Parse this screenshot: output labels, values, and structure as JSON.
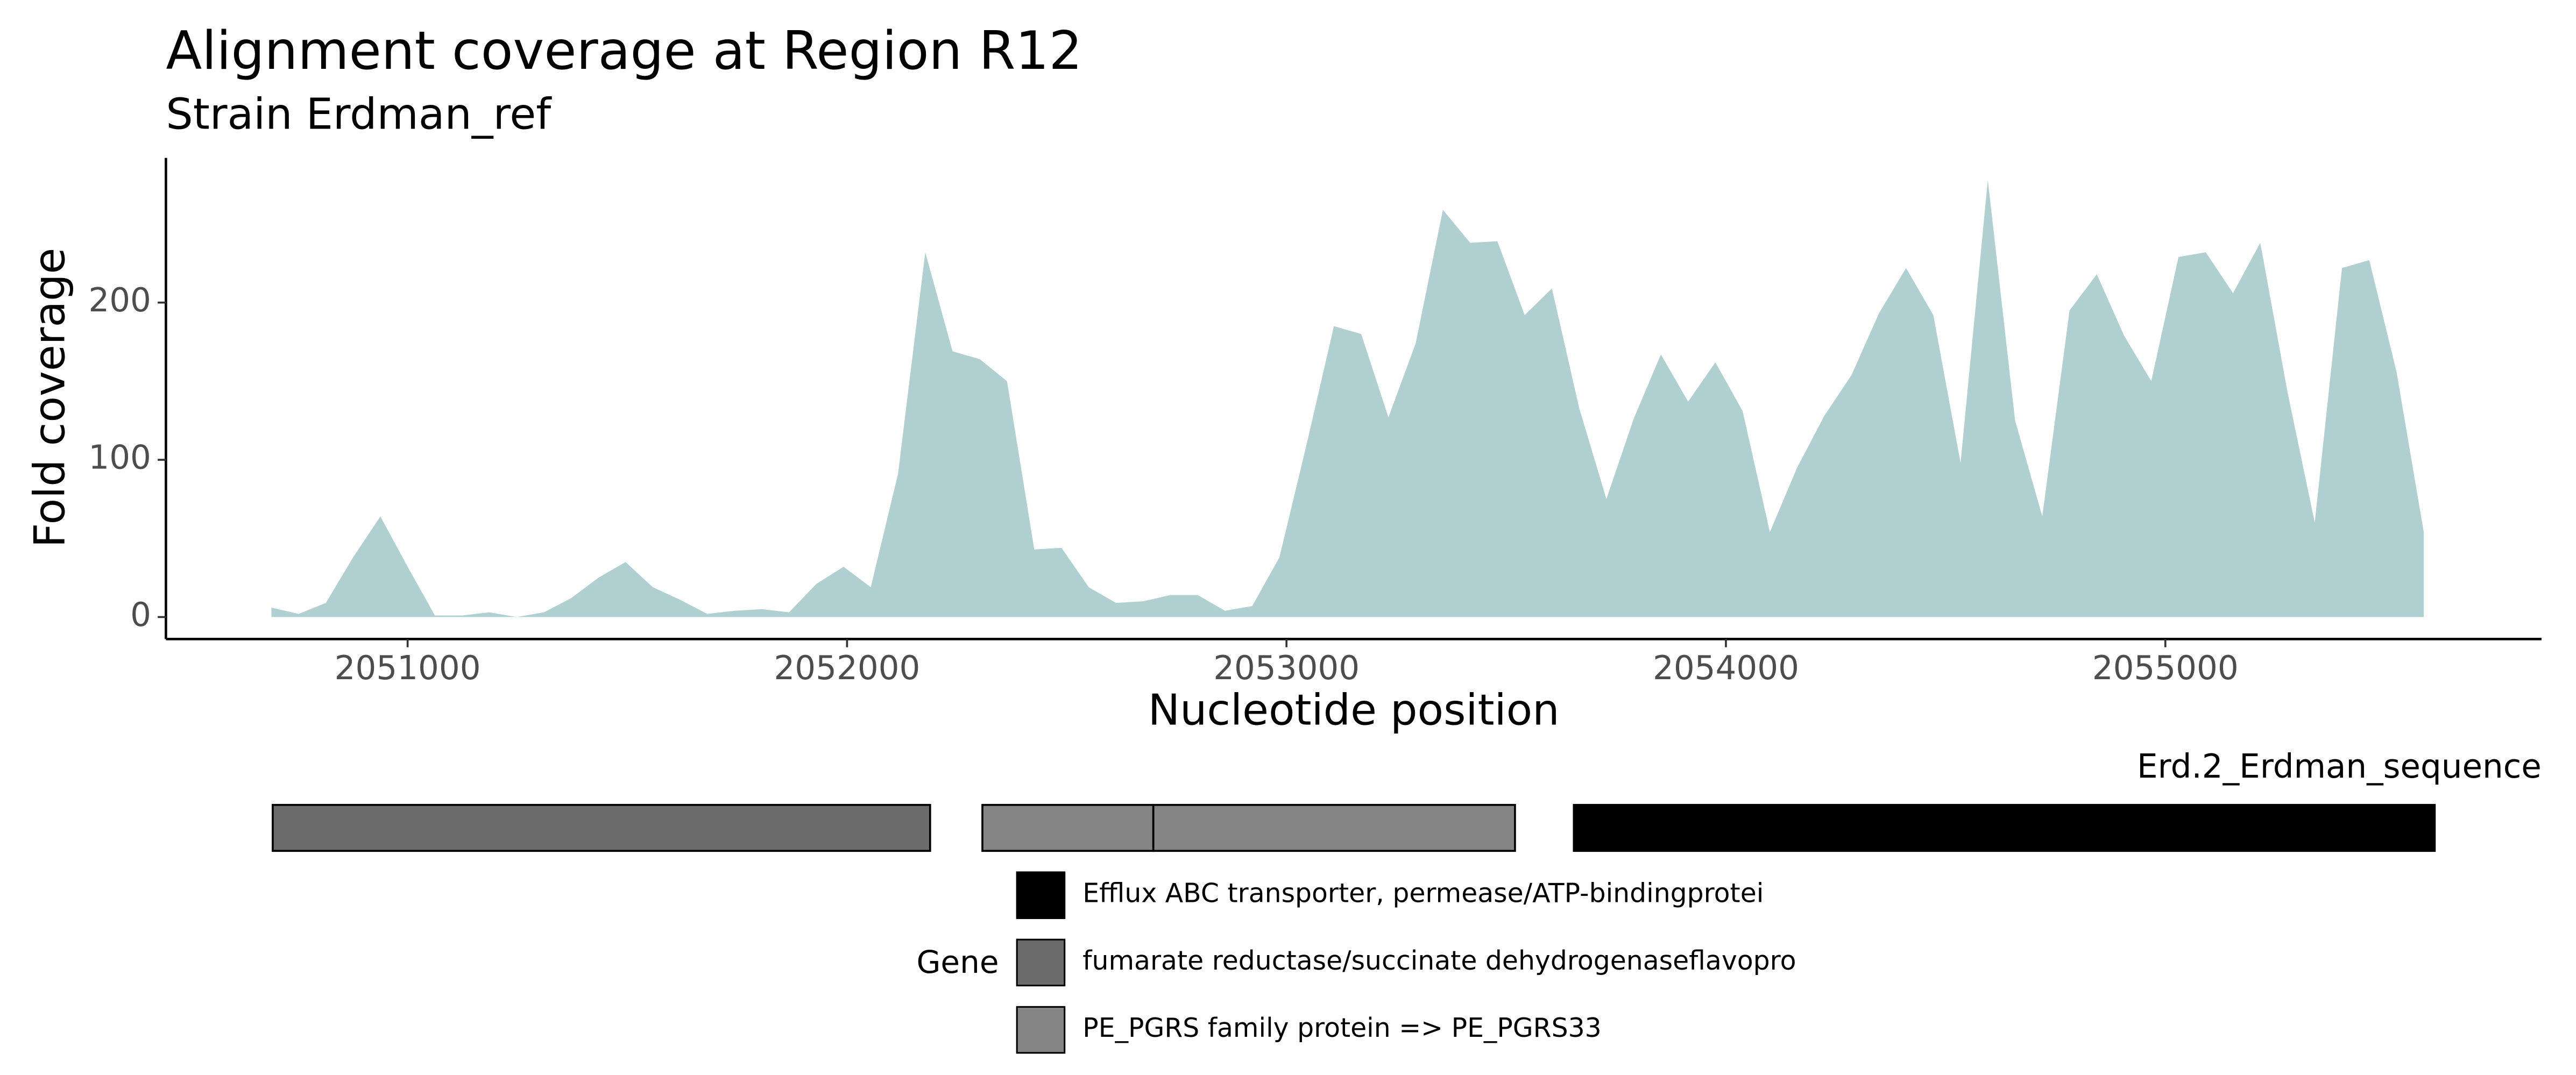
{
  "chart_data": [
    {
      "type": "area",
      "title": "Alignment coverage at Region R12",
      "subtitle": "Strain Erdman_ref",
      "x_label": "Nucleotide position",
      "y_label": "Fold coverage",
      "x": [
        2050690,
        2050752,
        2050814,
        2050876,
        2050938,
        2051000,
        2051062,
        2051124,
        2051186,
        2051248,
        2051310,
        2051372,
        2051434,
        2051496,
        2051558,
        2051620,
        2051682,
        2051744,
        2051806,
        2051868,
        2051930,
        2051992,
        2052054,
        2052116,
        2052178,
        2052240,
        2052302,
        2052364,
        2052426,
        2052488,
        2052550,
        2052612,
        2052674,
        2052736,
        2052798,
        2052860,
        2052922,
        2052984,
        2053046,
        2053108,
        2053170,
        2053232,
        2053294,
        2053356,
        2053418,
        2053480,
        2053542,
        2053604,
        2053666,
        2053728,
        2053790,
        2053852,
        2053914,
        2053976,
        2054038,
        2054100,
        2054162,
        2054224,
        2054286,
        2054348,
        2054410,
        2054472,
        2054534,
        2054596,
        2054658,
        2054720,
        2054782,
        2054844,
        2054906,
        2054968,
        2055030,
        2055092,
        2055154,
        2055216,
        2055278,
        2055340,
        2055402,
        2055464,
        2055526,
        2055588
      ],
      "values": [
        6,
        2,
        9,
        38,
        64,
        32,
        1,
        1,
        3,
        0,
        3,
        12,
        25,
        35,
        19,
        11,
        2,
        4,
        5,
        3,
        21,
        32,
        19,
        91,
        232,
        169,
        164,
        150,
        43,
        44,
        19,
        9,
        10,
        14,
        14,
        4,
        7,
        38,
        110,
        185,
        180,
        127,
        174,
        259,
        238,
        239,
        192,
        209,
        133,
        75,
        126,
        167,
        137,
        162,
        131,
        54,
        95,
        128,
        154,
        193,
        222,
        192,
        98,
        278,
        125,
        64,
        195,
        218,
        179,
        150,
        229,
        232,
        206,
        238,
        143,
        60,
        222,
        227,
        156,
        54
      ],
      "color": "#b0cfd1",
      "xlim": [
        2050450,
        2055856
      ],
      "ylim": [
        -14,
        292
      ],
      "xticks": [
        2051000,
        2052000,
        2053000,
        2054000,
        2055000
      ],
      "yticks": [
        0,
        100,
        200
      ]
    },
    {
      "type": "gene",
      "track": "Erd.2_Erdman_sequence",
      "legend_title": "Gene",
      "xlim": [
        2050450,
        2055856
      ],
      "series": [
        {
          "name": "Efflux ABC transporter, permease/ATP-bindingprotei",
          "color": "#000000",
          "segments": [
            [
              2053654,
              2055613
            ]
          ]
        },
        {
          "name": "fumarate reductase/succinate dehydrogenaseflavopro",
          "color": "#6b6b6b",
          "segments": [
            [
              2050693,
              2052189
            ]
          ]
        },
        {
          "name": "PE_PGRS family protein => PE_PGRS33",
          "color": "#858585",
          "segments": [
            [
              2052308,
              2052697
            ],
            [
              2052697,
              2053520
            ]
          ]
        }
      ]
    }
  ]
}
